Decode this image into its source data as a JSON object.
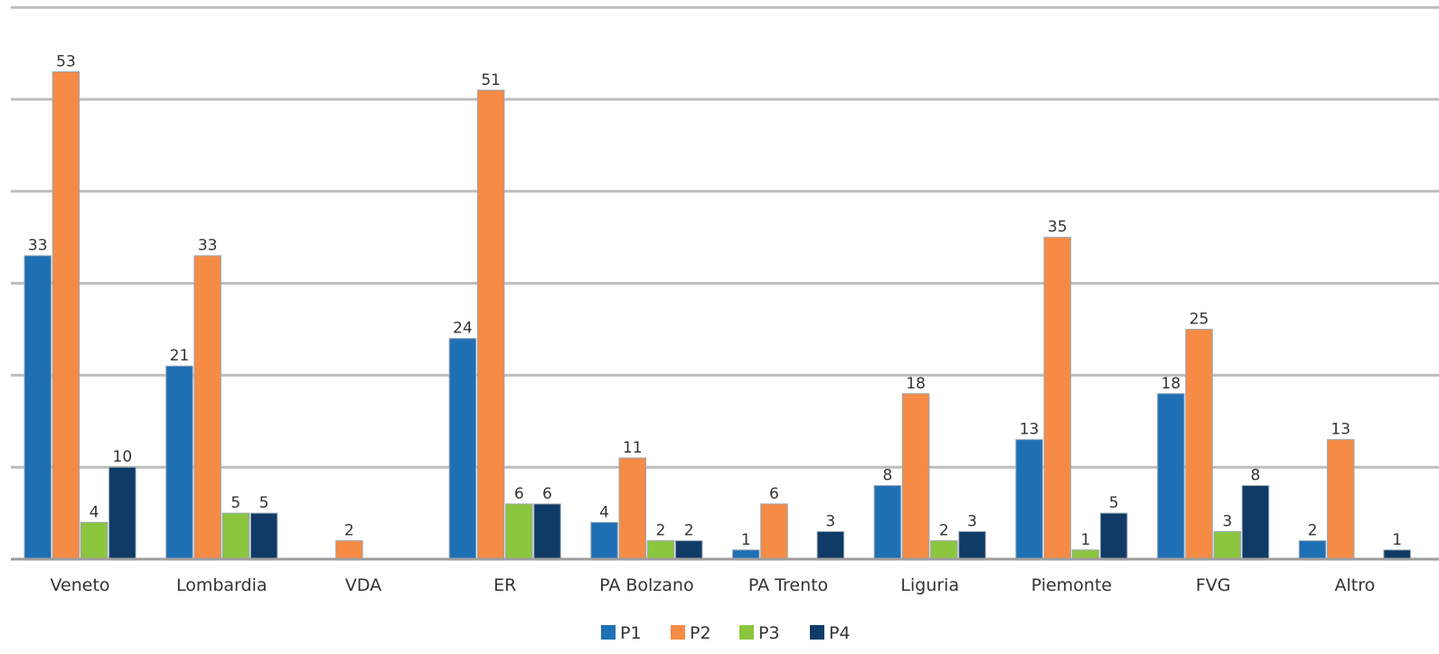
{
  "chart_data": {
    "type": "bar",
    "categories": [
      "Veneto",
      "Lombardia",
      "VDA",
      "ER",
      "PA Bolzano",
      "PA Trento",
      "Liguria",
      "Piemonte",
      "FVG",
      "Altro"
    ],
    "series": [
      {
        "name": "P1",
        "color": "#1f6fb5",
        "values": [
          33,
          21,
          null,
          24,
          4,
          1,
          8,
          13,
          18,
          2
        ]
      },
      {
        "name": "P2",
        "color": "#f58b45",
        "values": [
          53,
          33,
          2,
          51,
          11,
          6,
          18,
          35,
          25,
          13
        ]
      },
      {
        "name": "P3",
        "color": "#8cc63f",
        "values": [
          4,
          5,
          null,
          6,
          2,
          null,
          2,
          1,
          3,
          null
        ]
      },
      {
        "name": "P4",
        "color": "#0f3b66",
        "values": [
          10,
          5,
          null,
          6,
          2,
          3,
          3,
          5,
          8,
          1
        ]
      }
    ],
    "ylim": [
      0,
      60
    ],
    "y_grid_step": 10,
    "grid": true,
    "legend_position": "bottom-center",
    "data_labels": true
  }
}
